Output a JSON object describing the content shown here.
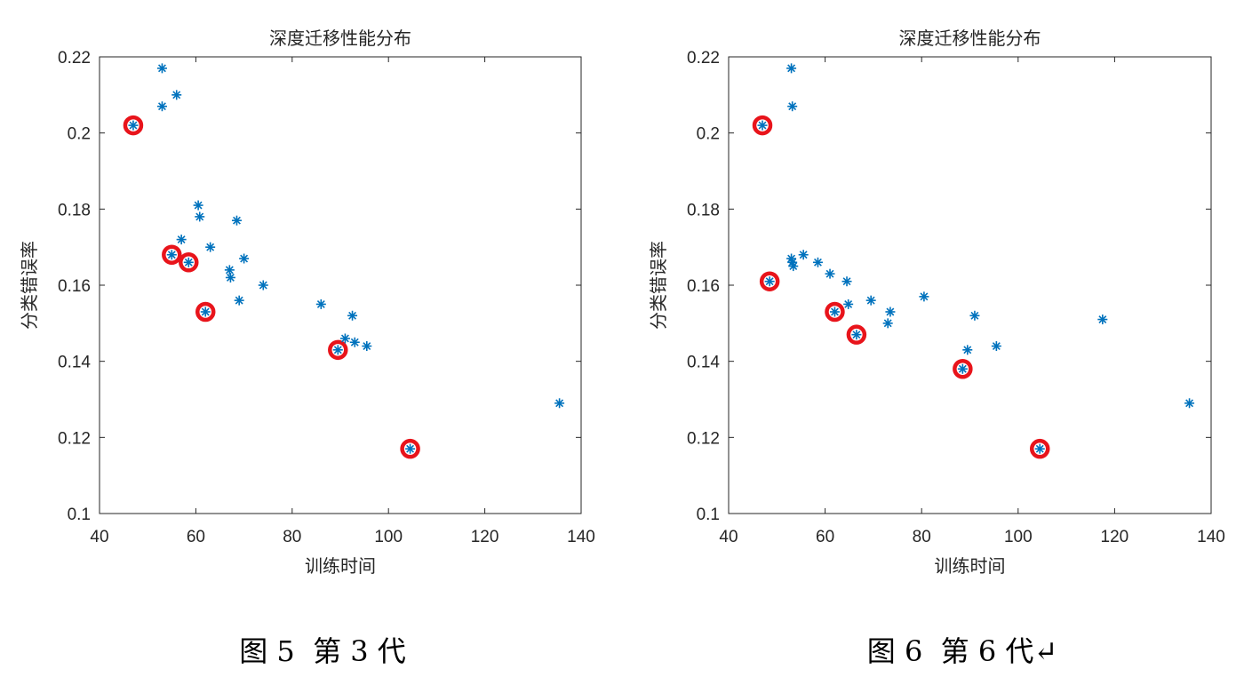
{
  "figures": [
    {
      "caption": "图 5  第 3 代"
    },
    {
      "caption": "图 6  第 6 代↵"
    }
  ],
  "colors": {
    "series": "#0072BD",
    "highlight": "#e8141b",
    "axis": "#262626"
  },
  "chart_data": [
    {
      "type": "scatter",
      "title": "深度迁移性能分布",
      "xlabel": "训练时间",
      "ylabel": "分类错误率",
      "xlim": [
        40,
        140
      ],
      "ylim": [
        0.1,
        0.22
      ],
      "xticks": [
        40,
        60,
        80,
        100,
        120,
        140
      ],
      "yticks": [
        0.1,
        0.12,
        0.14,
        0.16,
        0.18,
        0.2,
        0.22
      ],
      "ytick_labels": [
        "0.1",
        "0.12",
        "0.14",
        "0.16",
        "0.18",
        "0.2",
        "0.22"
      ],
      "grid": false,
      "marker": "asterisk",
      "points": [
        [
          53,
          0.217
        ],
        [
          56,
          0.21
        ],
        [
          53,
          0.207
        ],
        [
          47,
          0.202
        ],
        [
          60.5,
          0.181
        ],
        [
          60.8,
          0.178
        ],
        [
          68.5,
          0.177
        ],
        [
          57,
          0.172
        ],
        [
          63,
          0.17
        ],
        [
          55,
          0.168
        ],
        [
          70,
          0.167
        ],
        [
          58.5,
          0.166
        ],
        [
          67,
          0.164
        ],
        [
          67.2,
          0.162
        ],
        [
          74,
          0.16
        ],
        [
          69,
          0.156
        ],
        [
          86,
          0.155
        ],
        [
          62,
          0.153
        ],
        [
          92.5,
          0.152
        ],
        [
          91,
          0.146
        ],
        [
          93,
          0.145
        ],
        [
          95.5,
          0.144
        ],
        [
          89.5,
          0.143
        ],
        [
          135.5,
          0.129
        ],
        [
          104.5,
          0.117
        ]
      ],
      "highlighted": [
        [
          47,
          0.202
        ],
        [
          55,
          0.168
        ],
        [
          58.5,
          0.166
        ],
        [
          62,
          0.153
        ],
        [
          89.5,
          0.143
        ],
        [
          104.5,
          0.117
        ]
      ]
    },
    {
      "type": "scatter",
      "title": "深度迁移性能分布",
      "xlabel": "训练时间",
      "ylabel": "分类错误率",
      "xlim": [
        40,
        140
      ],
      "ylim": [
        0.1,
        0.22
      ],
      "xticks": [
        40,
        60,
        80,
        100,
        120,
        140
      ],
      "yticks": [
        0.1,
        0.12,
        0.14,
        0.16,
        0.18,
        0.2,
        0.22
      ],
      "ytick_labels": [
        "0.1",
        "0.12",
        "0.14",
        "0.16",
        "0.18",
        "0.2",
        "0.22"
      ],
      "grid": false,
      "marker": "asterisk",
      "points": [
        [
          53,
          0.217
        ],
        [
          53.2,
          0.207
        ],
        [
          47,
          0.202
        ],
        [
          55.5,
          0.168
        ],
        [
          53,
          0.167
        ],
        [
          53.2,
          0.166
        ],
        [
          53.4,
          0.165
        ],
        [
          58.5,
          0.166
        ],
        [
          61,
          0.163
        ],
        [
          48.5,
          0.161
        ],
        [
          64.5,
          0.161
        ],
        [
          80.5,
          0.157
        ],
        [
          69.5,
          0.156
        ],
        [
          64.8,
          0.155
        ],
        [
          62,
          0.153
        ],
        [
          73.5,
          0.153
        ],
        [
          91,
          0.152
        ],
        [
          117.5,
          0.151
        ],
        [
          73,
          0.15
        ],
        [
          66.5,
          0.147
        ],
        [
          95.5,
          0.144
        ],
        [
          89.5,
          0.143
        ],
        [
          88.5,
          0.138
        ],
        [
          135.5,
          0.129
        ],
        [
          104.5,
          0.117
        ]
      ],
      "highlighted": [
        [
          47,
          0.202
        ],
        [
          48.5,
          0.161
        ],
        [
          62,
          0.153
        ],
        [
          66.5,
          0.147
        ],
        [
          88.5,
          0.138
        ],
        [
          104.5,
          0.117
        ]
      ]
    }
  ]
}
